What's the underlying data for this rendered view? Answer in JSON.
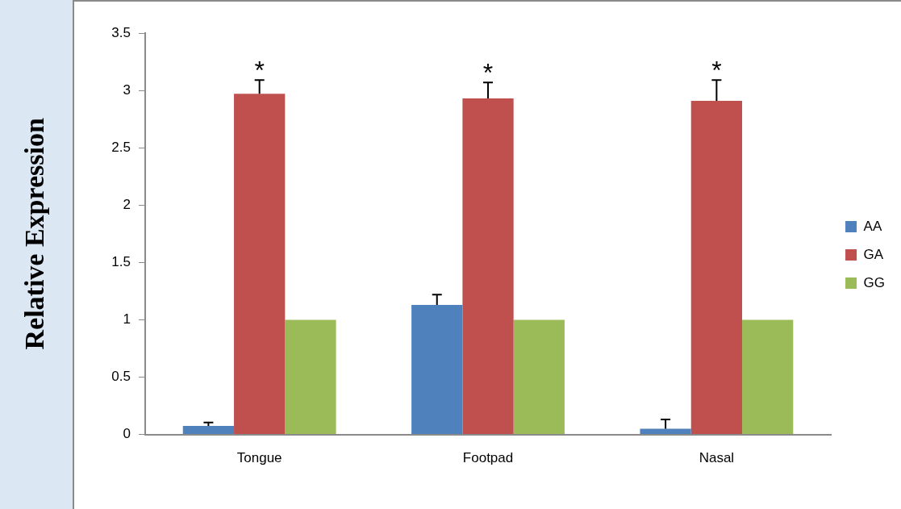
{
  "chart_data": {
    "type": "bar",
    "ylabel": "Relative Expression",
    "categories": [
      "Tongue",
      "Footpad",
      "Nasal"
    ],
    "series": [
      {
        "name": "AA",
        "color": "#4f81bd",
        "values": [
          0.075,
          1.13,
          0.05
        ],
        "errors": [
          [
            0.075,
            0.105
          ],
          [
            1.13,
            1.22
          ],
          [
            0.05,
            0.13
          ]
        ]
      },
      {
        "name": "GA",
        "color": "#c0504d",
        "values": [
          2.97,
          2.93,
          2.91
        ],
        "errors": [
          [
            2.97,
            3.09
          ],
          [
            2.93,
            3.07
          ],
          [
            2.91,
            3.09
          ]
        ]
      },
      {
        "name": "GG",
        "color": "#9bbb59",
        "values": [
          1.0,
          1.0,
          1.0
        ]
      }
    ],
    "ylim": [
      0,
      3.5
    ],
    "yticks": [
      0,
      0.5,
      1,
      1.5,
      2,
      2.5,
      3,
      3.5
    ],
    "grid": false,
    "legend": "right",
    "annotations": [
      "*",
      "*",
      "*"
    ]
  }
}
